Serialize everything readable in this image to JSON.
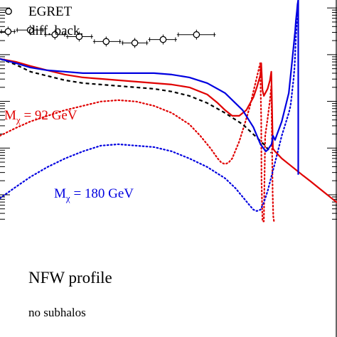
{
  "chart_data": {
    "type": "line",
    "title": "",
    "xlabel": "",
    "ylabel": "",
    "x_scale": "log",
    "y_scale": "log",
    "ylim_decades": 5,
    "x_tick_labels": [],
    "y_tick_labels": [],
    "legend": {
      "placement": "top-left",
      "entries": [
        {
          "text": "EGRET",
          "marker": "open-circle"
        },
        {
          "text": "diff. back.",
          "marker": "none"
        }
      ]
    },
    "annotations": {
      "m92": {
        "text": "M",
        "sub": "χ",
        "rest": " = 92 GeV",
        "color": "#e00000"
      },
      "m180": {
        "text": "M",
        "sub": "χ",
        "rest": " = 180 GeV",
        "color": "#0000e0"
      },
      "profile": "NFW profile",
      "subhalos": "no subhalos"
    },
    "series": [
      {
        "id": "egret",
        "kind": "points",
        "color": "#000000",
        "x_bin": [
          [
            0.0,
            0.047
          ],
          [
            0.047,
            0.131
          ],
          [
            0.131,
            0.196
          ],
          [
            0.196,
            0.276
          ],
          [
            0.276,
            0.36
          ],
          [
            0.36,
            0.44
          ],
          [
            0.44,
            0.525
          ],
          [
            0.525,
            0.64
          ]
        ],
        "x": [
          0.024,
          0.09,
          0.163,
          0.235,
          0.315,
          0.4,
          0.484,
          0.583
        ],
        "y": [
          4.065,
          4.096,
          3.998,
          3.957,
          3.851,
          3.821,
          3.894,
          3.998
        ]
      },
      {
        "id": "diffuse-background",
        "kind": "line",
        "style": "dashed",
        "color": "#000000",
        "x": [
          0.0,
          0.047,
          0.09,
          0.141,
          0.193,
          0.246,
          0.299,
          0.351,
          0.404,
          0.457,
          0.51,
          0.562,
          0.615,
          0.668,
          0.72,
          0.752,
          0.783,
          0.804
        ],
        "y": [
          3.479,
          3.357,
          3.205,
          3.114,
          3.022,
          2.961,
          2.93,
          2.9,
          2.869,
          2.839,
          2.779,
          2.687,
          2.535,
          2.322,
          2.078,
          1.865,
          1.652,
          1.469
        ]
      },
      {
        "id": "total-92-GeV",
        "kind": "line",
        "style": "solid",
        "color": "#e00000",
        "x": [
          0.0,
          0.047,
          0.09,
          0.141,
          0.193,
          0.246,
          0.299,
          0.351,
          0.404,
          0.457,
          0.51,
          0.562,
          0.615,
          0.646,
          0.668,
          0.689,
          0.71,
          0.731,
          0.752,
          0.762,
          0.773,
          0.775,
          0.779,
          0.783,
          0.794,
          0.801,
          0.805,
          0.809,
          0.81,
          0.816,
          0.824,
          0.836,
          0.857,
          0.878,
          0.899,
          0.921,
          0.942,
          0.963,
          0.984,
          1.0
        ],
        "y": [
          3.479,
          3.418,
          3.327,
          3.235,
          3.144,
          3.083,
          3.052,
          3.022,
          2.991,
          2.961,
          2.93,
          2.869,
          2.717,
          2.535,
          2.383,
          2.261,
          2.261,
          2.383,
          2.657,
          2.869,
          3.144,
          3.387,
          2.809,
          2.687,
          2.839,
          3.022,
          3.205,
          1.774,
          1.561,
          1.5,
          1.439,
          1.348,
          1.227,
          1.105,
          0.983,
          0.861,
          0.739,
          0.617,
          0.496,
          0.404
        ]
      },
      {
        "id": "total-180-GeV",
        "kind": "line",
        "style": "solid",
        "color": "#0000e0",
        "x": [
          0.0,
          0.047,
          0.09,
          0.141,
          0.193,
          0.246,
          0.299,
          0.351,
          0.404,
          0.457,
          0.51,
          0.562,
          0.615,
          0.668,
          0.72,
          0.752,
          0.773,
          0.789,
          0.794,
          0.806,
          0.81,
          0.816,
          0.836,
          0.857,
          0.867,
          0.876,
          0.878,
          0.881,
          0.883,
          0.885,
          0.885
        ],
        "y": [
          3.479,
          3.388,
          3.296,
          3.235,
          3.205,
          3.174,
          3.174,
          3.174,
          3.174,
          3.174,
          3.144,
          3.083,
          2.961,
          2.748,
          2.383,
          2.017,
          1.652,
          1.5,
          1.531,
          1.652,
          1.835,
          1.743,
          2.139,
          2.748,
          3.448,
          4.09,
          4.3,
          4.5,
          4.65,
          4.74,
          1.0
        ]
      },
      {
        "id": "signal-92-GeV",
        "kind": "line",
        "style": "dotted",
        "color": "#e00000",
        "x": [
          0.0,
          0.047,
          0.09,
          0.141,
          0.193,
          0.246,
          0.299,
          0.351,
          0.404,
          0.457,
          0.51,
          0.562,
          0.594,
          0.625,
          0.646,
          0.657,
          0.668,
          0.678,
          0.689,
          0.71,
          0.731,
          0.742,
          0.752,
          0.762,
          0.767,
          0.77,
          0.772,
          0.775,
          0.776,
          0.779,
          0.783,
          0.787,
          0.794,
          0.801,
          0.805,
          0.809,
          0.811,
          0.813
        ],
        "y": [
          1.835,
          2.0,
          2.139,
          2.261,
          2.383,
          2.474,
          2.566,
          2.596,
          2.566,
          2.474,
          2.322,
          2.078,
          1.835,
          1.561,
          1.348,
          1.257,
          1.227,
          1.257,
          1.348,
          1.713,
          2.2,
          2.474,
          2.779,
          3.083,
          3.235,
          3.327,
          3.387,
          2.2,
          0.9,
          0.0,
          0.0,
          1.835,
          2.2,
          2.596,
          2.9,
          0.6,
          0.1,
          0.0
        ]
      },
      {
        "id": "signal-180-GeV",
        "kind": "line",
        "style": "dotted",
        "color": "#0000e0",
        "x": [
          0.0,
          0.047,
          0.09,
          0.141,
          0.193,
          0.246,
          0.299,
          0.351,
          0.404,
          0.457,
          0.51,
          0.562,
          0.615,
          0.668,
          0.699,
          0.72,
          0.741,
          0.752,
          0.762,
          0.773,
          0.783,
          0.794,
          0.804,
          0.815,
          0.836,
          0.857,
          0.862,
          0.865,
          0.868,
          0.871,
          0.874,
          0.876,
          0.878,
          0.881,
          0.883,
          0.885
        ],
        "y": [
          0.496,
          0.739,
          0.952,
          1.165,
          1.348,
          1.5,
          1.622,
          1.652,
          1.622,
          1.591,
          1.5,
          1.348,
          1.165,
          0.922,
          0.709,
          0.526,
          0.343,
          0.252,
          0.222,
          0.252,
          0.404,
          0.648,
          0.922,
          1.227,
          1.835,
          2.322,
          2.474,
          2.65,
          2.85,
          3.05,
          3.3,
          3.6,
          3.95,
          4.3,
          4.6,
          4.74
        ]
      }
    ]
  }
}
